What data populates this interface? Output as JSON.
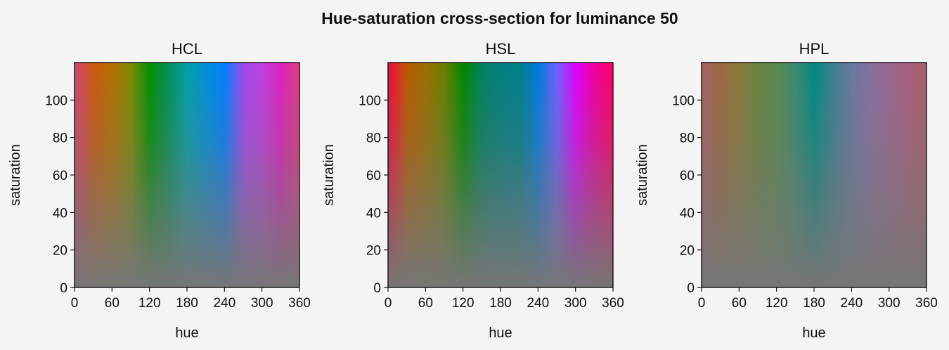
{
  "figure": {
    "suptitle": "Hue-saturation cross-section for luminance 50",
    "background": "#f4f4f4"
  },
  "chart_data": [
    {
      "type": "heatmap",
      "title": "HCL",
      "xlabel": "hue",
      "ylabel": "saturation",
      "xlim": [
        0,
        360
      ],
      "ylim": [
        0,
        120
      ],
      "xticks": [
        0,
        60,
        120,
        180,
        240,
        300,
        360
      ],
      "yticks": [
        0,
        20,
        40,
        60,
        80,
        100
      ],
      "grid": false,
      "color_samples": {
        "hue": [
          0,
          30,
          60,
          90,
          120,
          150,
          180,
          210,
          240,
          270,
          300,
          330,
          360
        ],
        "top_row": [
          "#d8407a",
          "#cc5a10",
          "#b37000",
          "#7e8a00",
          "#009000",
          "#00905a",
          "#00a0a8",
          "#0090d8",
          "#0080ff",
          "#a048f0",
          "#c040e0",
          "#e020c0",
          "#d8407a"
        ],
        "neutral_bottom": "#767676"
      }
    },
    {
      "type": "heatmap",
      "title": "HSL",
      "xlabel": "hue",
      "ylabel": "saturation",
      "xlim": [
        0,
        360
      ],
      "ylim": [
        0,
        120
      ],
      "xticks": [
        0,
        60,
        120,
        180,
        240,
        300,
        360
      ],
      "yticks": [
        0,
        20,
        40,
        60,
        80,
        100
      ],
      "grid": false,
      "color_samples": {
        "hue": [
          0,
          30,
          60,
          90,
          120,
          150,
          180,
          210,
          240,
          270,
          300,
          330,
          360
        ],
        "top_row": [
          "#ff0040",
          "#b85a00",
          "#9a6e00",
          "#6a8000",
          "#008800",
          "#008060",
          "#008080",
          "#00808a",
          "#007ae0",
          "#7060ff",
          "#e000ff",
          "#f000a0",
          "#ff0060"
        ],
        "neutral_bottom": "#767676"
      }
    },
    {
      "type": "heatmap",
      "title": "HPL",
      "xlabel": "hue",
      "ylabel": "saturation",
      "xlim": [
        0,
        360
      ],
      "ylim": [
        0,
        120
      ],
      "xticks": [
        0,
        60,
        120,
        180,
        240,
        300,
        360
      ],
      "yticks": [
        0,
        20,
        40,
        60,
        80,
        100
      ],
      "grid": false,
      "color_samples": {
        "hue": [
          0,
          30,
          60,
          90,
          120,
          150,
          180,
          210,
          240,
          270,
          300,
          330,
          360
        ],
        "top_row": [
          "#a86068",
          "#9a6a40",
          "#887a3a",
          "#6a8440",
          "#5a8a50",
          "#3a8a70",
          "#008a80",
          "#3a8090",
          "#6a78a0",
          "#8870a0",
          "#9a6890",
          "#a86080",
          "#a86068"
        ],
        "neutral_bottom": "#767676"
      }
    }
  ]
}
